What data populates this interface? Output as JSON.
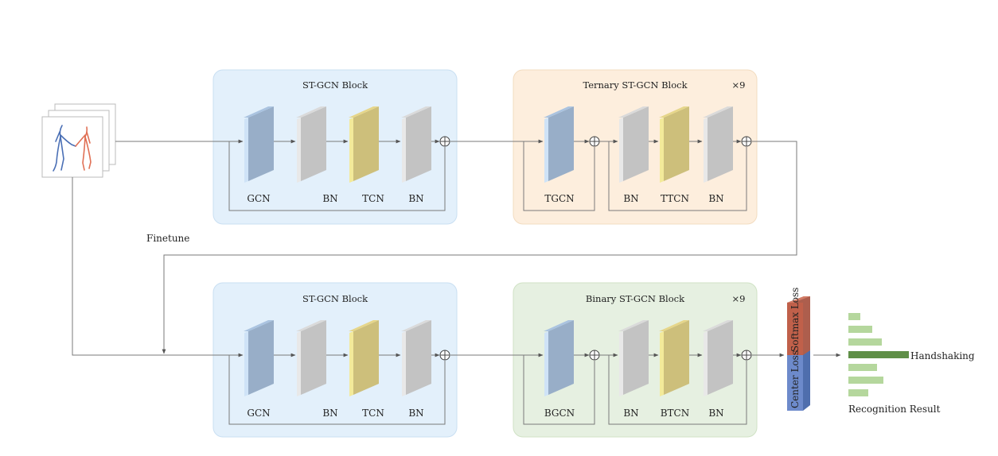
{
  "colors": {
    "stgcn_panel": "#e3f0fb",
    "ternary_panel": "#fdeedd",
    "binary_panel": "#e6f0e1",
    "gcn_block": "#98aec8",
    "bn_block": "#c3c3c3",
    "tcn_block": "#cdbf7b",
    "softmax": "#c0604a",
    "center": "#6d8acb",
    "result_bar": "#b5d79d",
    "result_bar_highlight": "#5f8f47"
  },
  "finetune_label": "Finetune",
  "top": {
    "stgcn": {
      "title": "ST-GCN Block",
      "labels": [
        "GCN",
        "BN",
        "TCN",
        "BN"
      ]
    },
    "ternary": {
      "title": "Ternary ST-GCN Block",
      "repeat": "×9",
      "labels": [
        "TGCN",
        "BN",
        "TTCN",
        "BN"
      ]
    }
  },
  "bottom": {
    "stgcn": {
      "title": "ST-GCN Block",
      "labels": [
        "GCN",
        "BN",
        "TCN",
        "BN"
      ]
    },
    "binary": {
      "title": "Binary ST-GCN Block",
      "repeat": "×9",
      "labels": [
        "BGCN",
        "BN",
        "BTCN",
        "BN"
      ]
    }
  },
  "loss": {
    "softmax": "Softmax Loss",
    "center": "Center Loss"
  },
  "result": {
    "class_label": "Handshaking",
    "caption": "Recognition Result",
    "bars": [
      0.2,
      0.4,
      0.55,
      1.0,
      0.48,
      0.58,
      0.33
    ],
    "highlight_index": 3
  }
}
